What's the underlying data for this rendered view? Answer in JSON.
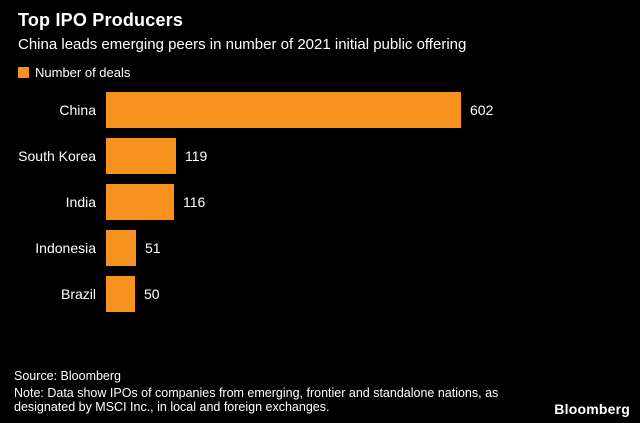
{
  "header": {
    "title": "Top IPO Producers",
    "subtitle": "China leads emerging peers in number of 2021 initial public offering"
  },
  "legend": {
    "label": "Number of deals"
  },
  "chart_data": {
    "type": "bar",
    "orientation": "horizontal",
    "title": "Top IPO Producers",
    "subtitle": "China leads emerging peers in number of 2021 initial public offering",
    "series_name": "Number of deals",
    "categories": [
      "China",
      "South Korea",
      "India",
      "Indonesia",
      "Brazil"
    ],
    "values": [
      602,
      119,
      116,
      51,
      50
    ],
    "xlim": [
      0,
      602
    ],
    "grid": false,
    "legend_position": "top-left",
    "data_labels": true
  },
  "footer": {
    "source": "Source: Bloomberg",
    "note": "Note: Data show IPOs of companies from emerging, frontier and standalone nations, as designated by MSCI Inc., in local and foreign exchanges.",
    "brand": "Bloomberg"
  },
  "colors": {
    "background": "#000000",
    "accent": "#f7921e",
    "text": "#ffffff"
  }
}
